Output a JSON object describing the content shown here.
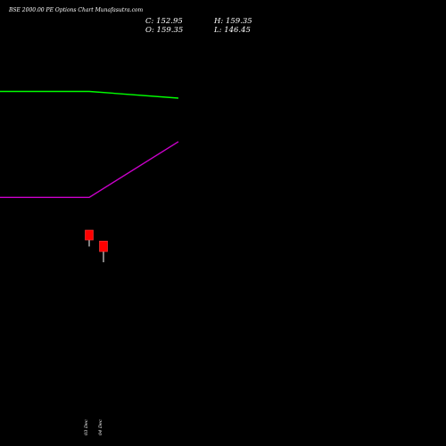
{
  "header": {
    "title": "BSE 2000.00  PE Options  Chart Munafasutra.com",
    "close": "C: 152.95",
    "open": "O: 159.35",
    "high": "H: 159.35",
    "low": "L: 146.45"
  },
  "colors": {
    "background": "#000000",
    "green_line": "#00ff00",
    "magenta_line": "#cc00cc",
    "candle_bear": "#ff0000",
    "text": "#ffffff"
  },
  "chart_data": {
    "type": "candlestick",
    "title": "BSE 2000.00  PE Options  Chart Munafasutra.com",
    "x": [
      "03 Dec",
      "04 Dec"
    ],
    "x_tick_labels": [
      "03 Dec",
      "04 Dec"
    ],
    "candles": [
      {
        "date": "03 Dec",
        "open": 166.0,
        "high": 166.0,
        "low": 156.0,
        "close": 160.0
      },
      {
        "date": "04 Dec",
        "open": 159.35,
        "high": 159.35,
        "low": 146.45,
        "close": 152.95
      }
    ],
    "series": [
      {
        "color": "#00ff00",
        "points": [
          {
            "x": 0,
            "y": 270
          },
          {
            "x": 1,
            "y": 270
          },
          {
            "x": 2,
            "y": 264
          }
        ]
      },
      {
        "color": "#cc00cc",
        "points": [
          {
            "x": 0,
            "y": 175
          },
          {
            "x": 1,
            "y": 175
          },
          {
            "x": 2,
            "y": 225
          }
        ]
      }
    ],
    "ylim": [
      0,
      320
    ],
    "grid": false
  }
}
